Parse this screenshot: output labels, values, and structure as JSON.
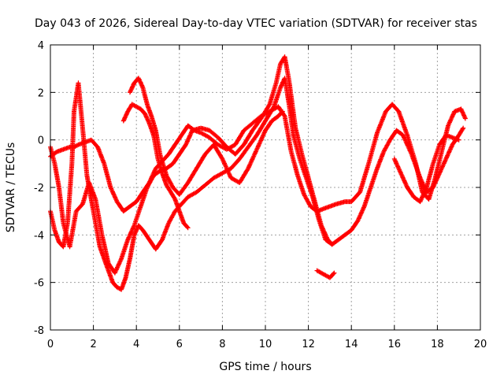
{
  "chart_data": {
    "type": "scatter",
    "title": "Day 043 of 2026, Sidereal Day-to-day VTEC variation (SDTVAR) for receiver stas",
    "xlabel": "GPS time / hours",
    "ylabel": "SDTVAR / TECUs",
    "xlim": [
      0,
      20
    ],
    "ylim": [
      -8,
      4
    ],
    "xticks": [
      "0",
      "2",
      "4",
      "6",
      "8",
      "10",
      "12",
      "14",
      "16",
      "18",
      "20"
    ],
    "yticks": [
      "-8",
      "-6",
      "-4",
      "-2",
      "0",
      "2",
      "4"
    ],
    "grid": true,
    "marker": "+",
    "color": "#ff0000",
    "series": [
      {
        "name": "trace-1",
        "x": [
          0.0,
          0.3,
          0.6,
          0.9,
          1.1,
          1.3,
          1.6,
          1.9,
          2.2,
          2.5,
          2.8,
          3.1,
          3.4,
          3.7,
          4.0,
          4.3,
          4.6,
          4.9,
          5.2,
          5.5,
          5.8,
          6.1,
          6.4,
          6.7,
          7.0,
          7.4,
          7.8,
          8.2,
          8.6,
          9.0,
          9.4,
          9.8,
          10.2,
          10.6,
          10.9,
          11.2,
          11.5,
          11.8,
          12.1,
          12.4,
          12.7,
          13.0,
          13.3,
          13.7,
          14.0,
          14.4,
          14.8,
          15.2,
          15.6,
          15.9,
          16.2,
          16.6,
          17.0,
          17.3,
          17.6,
          17.9,
          18.2,
          18.5,
          18.8,
          19.1,
          19.3
        ],
        "y": [
          -0.7,
          -0.5,
          -0.4,
          -0.3,
          -0.3,
          -0.2,
          -0.1,
          0.0,
          -0.3,
          -1.0,
          -2.0,
          -2.6,
          -3.0,
          -2.8,
          -2.6,
          -2.2,
          -1.8,
          -1.2,
          -0.9,
          -0.6,
          -0.2,
          0.2,
          0.6,
          0.4,
          0.3,
          0.1,
          -0.2,
          -0.4,
          -0.2,
          0.4,
          0.7,
          1.0,
          1.2,
          1.4,
          1.0,
          -0.5,
          -1.5,
          -2.3,
          -2.8,
          -3.0,
          -2.9,
          -2.8,
          -2.7,
          -2.6,
          -2.6,
          -2.2,
          -1.0,
          0.3,
          1.2,
          1.5,
          1.2,
          0.2,
          -1.0,
          -2.2,
          -2.5,
          -1.6,
          -0.5,
          0.6,
          1.2,
          1.3,
          0.9
        ]
      },
      {
        "name": "trace-2",
        "x": [
          0.0,
          0.2,
          0.4,
          0.6,
          0.8,
          1.0,
          1.1,
          1.3,
          1.5,
          1.7,
          1.9,
          2.1,
          2.3,
          2.5,
          2.7,
          2.9,
          3.1,
          3.3,
          3.5,
          3.7,
          3.9,
          4.1,
          4.3,
          4.6,
          4.9,
          5.2,
          5.5,
          5.8,
          6.1,
          6.4,
          6.8,
          7.2,
          7.6,
          8.0,
          8.4,
          8.8,
          9.2,
          9.6,
          10.0,
          10.4,
          10.7,
          10.9,
          11.1,
          11.3,
          11.6,
          11.9,
          12.2,
          12.5,
          12.8,
          13.1,
          13.4,
          13.7,
          14.0,
          14.3,
          14.6,
          14.9,
          15.2,
          15.5,
          15.8,
          16.1,
          16.4,
          16.8,
          17.2,
          17.5,
          17.8,
          18.1,
          18.4,
          18.7,
          19.0,
          19.2
        ],
        "y": [
          -3.0,
          -3.8,
          -4.3,
          -4.5,
          -3.5,
          -1.0,
          1.2,
          2.4,
          0.5,
          -1.5,
          -2.5,
          -3.5,
          -4.5,
          -5.0,
          -5.5,
          -6.0,
          -6.2,
          -6.3,
          -5.8,
          -5.0,
          -4.0,
          -3.6,
          -3.8,
          -4.2,
          -4.6,
          -4.2,
          -3.5,
          -3.0,
          -2.7,
          -2.4,
          -2.2,
          -1.9,
          -1.6,
          -1.4,
          -1.2,
          -0.8,
          -0.3,
          0.2,
          0.8,
          1.4,
          2.2,
          2.6,
          1.5,
          0.2,
          -0.8,
          -1.6,
          -2.4,
          -3.4,
          -4.2,
          -4.4,
          -4.2,
          -4.0,
          -3.8,
          -3.4,
          -2.8,
          -2.0,
          -1.2,
          -0.5,
          0.0,
          0.4,
          0.2,
          -0.6,
          -1.6,
          -2.2,
          -2.0,
          -1.4,
          -0.8,
          -0.2,
          0.2,
          0.5
        ]
      },
      {
        "name": "trace-3",
        "x": [
          0.0,
          0.2,
          0.4,
          0.6,
          0.9,
          1.2,
          1.5,
          1.8,
          2.1,
          2.4,
          2.7,
          3.0,
          3.3,
          3.6,
          3.9,
          4.2,
          4.5,
          4.8,
          5.1,
          5.4,
          5.7,
          6.0,
          6.3,
          6.6,
          7.0,
          7.4,
          7.8,
          8.2,
          8.6,
          9.0,
          9.4,
          9.8,
          10.2,
          10.5,
          10.7,
          10.9,
          11.1,
          11.4,
          11.7,
          12.0,
          12.3,
          12.6,
          12.9,
          13.1
        ],
        "y": [
          -0.3,
          -1.0,
          -2.0,
          -3.5,
          -4.5,
          -3.0,
          -2.7,
          -1.8,
          -2.5,
          -4.0,
          -5.2,
          -5.6,
          -5.0,
          -4.2,
          -3.6,
          -2.8,
          -2.0,
          -1.5,
          -1.3,
          -1.2,
          -1.0,
          -0.6,
          -0.2,
          0.4,
          0.5,
          0.4,
          0.1,
          -0.3,
          -0.6,
          -0.2,
          0.4,
          0.9,
          1.5,
          2.4,
          3.2,
          3.5,
          2.5,
          0.5,
          -0.6,
          -1.6,
          -2.6,
          -3.6,
          -4.2,
          -4.4
        ]
      },
      {
        "name": "trace-4",
        "x": [
          3.4,
          3.6,
          3.8,
          4.0,
          4.2,
          4.4,
          4.6,
          4.8,
          5.0,
          5.2,
          5.4,
          5.6,
          5.8,
          6.0,
          6.2,
          6.4
        ],
        "y": [
          0.8,
          1.2,
          1.5,
          1.4,
          1.3,
          1.1,
          0.7,
          0.2,
          -0.8,
          -1.4,
          -1.9,
          -2.2,
          -2.5,
          -3.0,
          -3.5,
          -3.7
        ]
      },
      {
        "name": "trace-5",
        "x": [
          3.7,
          3.9,
          4.1,
          4.3,
          4.5,
          4.7,
          4.9,
          5.1,
          5.4,
          5.7,
          6.0,
          6.4,
          6.8,
          7.2,
          7.6,
          8.0,
          8.4,
          8.8,
          9.2,
          9.6,
          10.0,
          10.3,
          10.6,
          10.8
        ],
        "y": [
          2.0,
          2.4,
          2.6,
          2.2,
          1.5,
          1.0,
          0.4,
          -0.6,
          -1.5,
          -2.0,
          -2.3,
          -1.8,
          -1.2,
          -0.6,
          -0.2,
          -0.8,
          -1.6,
          -1.8,
          -1.2,
          -0.4,
          0.4,
          0.8,
          1.0,
          1.2
        ]
      },
      {
        "name": "trace-6",
        "x": [
          12.4,
          12.6,
          12.8,
          13.0,
          13.2
        ],
        "y": [
          -5.5,
          -5.6,
          -5.7,
          -5.8,
          -5.6
        ]
      },
      {
        "name": "trace-7",
        "x": [
          16.0,
          16.3,
          16.6,
          16.9,
          17.2,
          17.5,
          17.8,
          18.1,
          18.4,
          18.7,
          19.0
        ],
        "y": [
          -0.8,
          -1.4,
          -2.0,
          -2.4,
          -2.6,
          -2.0,
          -1.0,
          -0.2,
          0.2,
          0.1,
          0.0
        ]
      }
    ]
  }
}
